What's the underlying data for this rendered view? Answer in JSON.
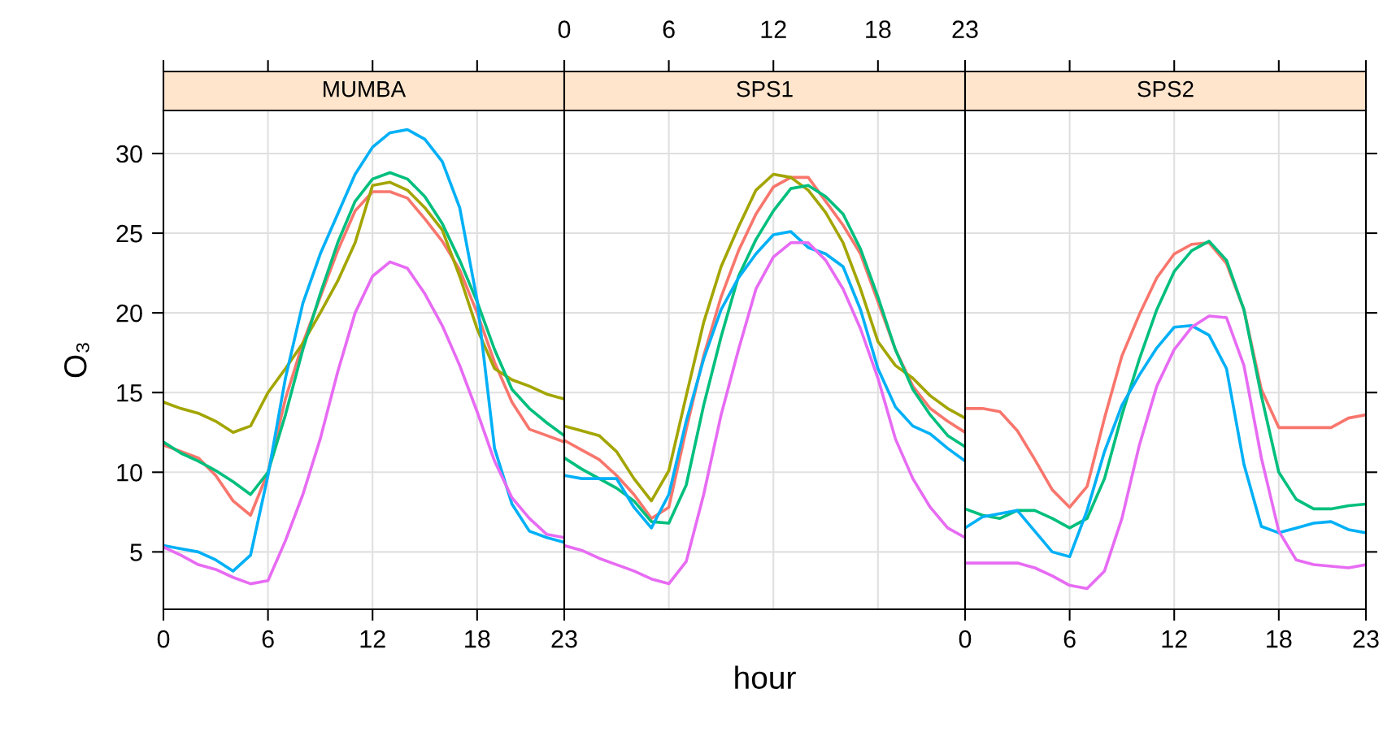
{
  "chart_data": [
    {
      "type": "line",
      "title": "MUMBA",
      "ylabel": "O₃",
      "x": [
        0,
        1,
        2,
        3,
        4,
        5,
        6,
        7,
        8,
        9,
        10,
        11,
        12,
        13,
        14,
        15,
        16,
        17,
        18,
        19,
        20,
        21,
        22,
        23
      ],
      "xlim": [
        0,
        23
      ],
      "xticks": [
        0,
        6,
        12,
        18,
        23
      ],
      "ylim": [
        1.4,
        32.7
      ],
      "yticks": [
        5,
        10,
        15,
        20,
        25,
        30
      ],
      "grid": true,
      "line_style": "solid",
      "series": [
        {
          "color": "#f8766d",
          "values": [
            11.7,
            11.3,
            10.9,
            9.8,
            8.2,
            7.3,
            10,
            14.6,
            18.1,
            21,
            23.9,
            26.4,
            27.6,
            27.6,
            27.2,
            25.9,
            24.5,
            22.7,
            20,
            16.9,
            14.4,
            12.7,
            12.3,
            11.9
          ]
        },
        {
          "color": "#a3a500",
          "values": [
            14.4,
            14.0,
            13.7,
            13.2,
            12.5,
            12.9,
            15,
            16.5,
            18.1,
            20,
            22,
            24.4,
            28,
            28.2,
            27.7,
            26.6,
            25.2,
            22.3,
            19,
            16.5,
            15.8,
            15.4,
            14.9,
            14.6
          ]
        },
        {
          "color": "#00bf7d",
          "values": [
            11.9,
            11.2,
            10.7,
            10.1,
            9.4,
            8.6,
            10,
            13.6,
            17.7,
            21.2,
            24.4,
            27,
            28.4,
            28.8,
            28.4,
            27.3,
            25.6,
            23.3,
            20.7,
            17.7,
            15.2,
            14,
            13.1,
            12.3
          ]
        },
        {
          "color": "#00b0f6",
          "values": [
            5.4,
            5.2,
            5.0,
            4.5,
            3.8,
            4.8,
            9.8,
            15.9,
            20.6,
            23.7,
            26.2,
            28.7,
            30.4,
            31.3,
            31.5,
            30.9,
            29.5,
            26.6,
            20.8,
            11.5,
            8.0,
            6.3,
            5.9,
            5.6
          ]
        },
        {
          "color": "#e76bf3",
          "values": [
            5.3,
            4.8,
            4.2,
            3.9,
            3.4,
            3.0,
            3.2,
            5.7,
            8.6,
            12.1,
            16.3,
            20,
            22.3,
            23.2,
            22.8,
            21.2,
            19.2,
            16.7,
            13.8,
            10.7,
            8.4,
            7.1,
            6.1,
            5.9
          ]
        }
      ]
    },
    {
      "type": "line",
      "title": "SPS1",
      "xlabel": "hour",
      "x": [
        0,
        1,
        2,
        3,
        4,
        5,
        6,
        7,
        8,
        9,
        10,
        11,
        12,
        13,
        14,
        15,
        16,
        17,
        18,
        19,
        20,
        21,
        22,
        23
      ],
      "xlim": [
        0,
        23
      ],
      "xticks": [
        0,
        6,
        12,
        18,
        23
      ],
      "ylim": [
        1.4,
        32.7
      ],
      "yticks": [
        5,
        10,
        15,
        20,
        25,
        30
      ],
      "tick_labels": "x",
      "grid": true,
      "line_style": "solid",
      "series": [
        {
          "color": "#f8766d",
          "values": [
            12,
            11.4,
            10.8,
            9.8,
            8.6,
            7.1,
            7.8,
            12.7,
            17.3,
            21,
            23.9,
            26.2,
            27.9,
            28.5,
            28.5,
            27,
            25.5,
            23.7,
            20.7,
            17.7,
            15.4,
            14.0,
            13.2,
            12.5
          ]
        },
        {
          "color": "#a3a500",
          "values": [
            12.9,
            12.6,
            12.3,
            11.3,
            9.6,
            8.2,
            10.1,
            14.8,
            19.4,
            22.9,
            25.4,
            27.7,
            28.7,
            28.5,
            27.7,
            26.3,
            24.4,
            21.5,
            18.2,
            16.7,
            15.9,
            14.8,
            14.0,
            13.4
          ]
        },
        {
          "color": "#00bf7d",
          "values": [
            10.9,
            10.2,
            9.6,
            9.0,
            8.2,
            6.9,
            6.8,
            9.2,
            14.2,
            18.5,
            22.3,
            24.6,
            26.4,
            27.8,
            28,
            27.3,
            26.2,
            24,
            21,
            17.7,
            15.2,
            13.6,
            12.3,
            11.6
          ]
        },
        {
          "color": "#00b0f6",
          "values": [
            9.8,
            9.6,
            9.6,
            9.6,
            7.8,
            6.5,
            8.6,
            13.2,
            17.1,
            20.2,
            22.2,
            23.7,
            24.9,
            25.1,
            24.1,
            23.7,
            22.9,
            20.2,
            16.5,
            14.1,
            12.9,
            12.4,
            11.5,
            10.7
          ]
        },
        {
          "color": "#e76bf3",
          "values": [
            5.4,
            5.1,
            4.6,
            4.2,
            3.8,
            3.3,
            3.0,
            4.4,
            8.6,
            13.6,
            17.7,
            21.5,
            23.5,
            24.4,
            24.4,
            23.3,
            21.5,
            19.0,
            15.9,
            12.1,
            9.6,
            7.8,
            6.5,
            5.9
          ]
        }
      ]
    },
    {
      "type": "line",
      "title": "SPS2",
      "x": [
        0,
        1,
        2,
        3,
        4,
        5,
        6,
        7,
        8,
        9,
        10,
        11,
        12,
        13,
        14,
        15,
        16,
        17,
        18,
        19,
        20,
        21,
        22,
        23
      ],
      "xlim": [
        0,
        23
      ],
      "xticks": [
        0,
        6,
        12,
        18,
        23
      ],
      "ylim": [
        1.4,
        32.7
      ],
      "yticks": [
        5,
        10,
        15,
        20,
        25,
        30
      ],
      "tick_labels": "x",
      "grid": true,
      "line_style": "solid",
      "series": [
        {
          "color": "#f8766d",
          "values": [
            14,
            14.0,
            13.8,
            12.6,
            10.8,
            8.9,
            7.8,
            9.1,
            13.4,
            17.3,
            19.9,
            22.2,
            23.7,
            24.3,
            24.4,
            23.1,
            20.2,
            15.2,
            12.8,
            12.8,
            12.8,
            12.8,
            13.4,
            13.6
          ]
        },
        {
          "color": "#00bf7d",
          "values": [
            7.7,
            7.3,
            7.1,
            7.6,
            7.6,
            7.1,
            6.5,
            7.1,
            9.6,
            13.6,
            17.1,
            20.2,
            22.6,
            23.9,
            24.5,
            23.3,
            20.2,
            14.8,
            10,
            8.3,
            7.7,
            7.7,
            7.9,
            8.0
          ]
        },
        {
          "color": "#00b0f6",
          "values": [
            6.5,
            7.2,
            7.4,
            7.6,
            6.3,
            5.0,
            4.7,
            7.6,
            11.3,
            14.2,
            16.1,
            17.8,
            19.1,
            19.2,
            18.6,
            16.5,
            10.5,
            6.6,
            6.2,
            6.5,
            6.8,
            6.9,
            6.4,
            6.2
          ]
        },
        {
          "color": "#e76bf3",
          "values": [
            4.3,
            4.3,
            4.3,
            4.3,
            4.0,
            3.5,
            2.9,
            2.7,
            3.8,
            7.1,
            11.7,
            15.4,
            17.7,
            19.1,
            19.8,
            19.7,
            16.7,
            10.9,
            6.3,
            4.5,
            4.2,
            4.1,
            4.0,
            4.2
          ]
        }
      ]
    }
  ]
}
